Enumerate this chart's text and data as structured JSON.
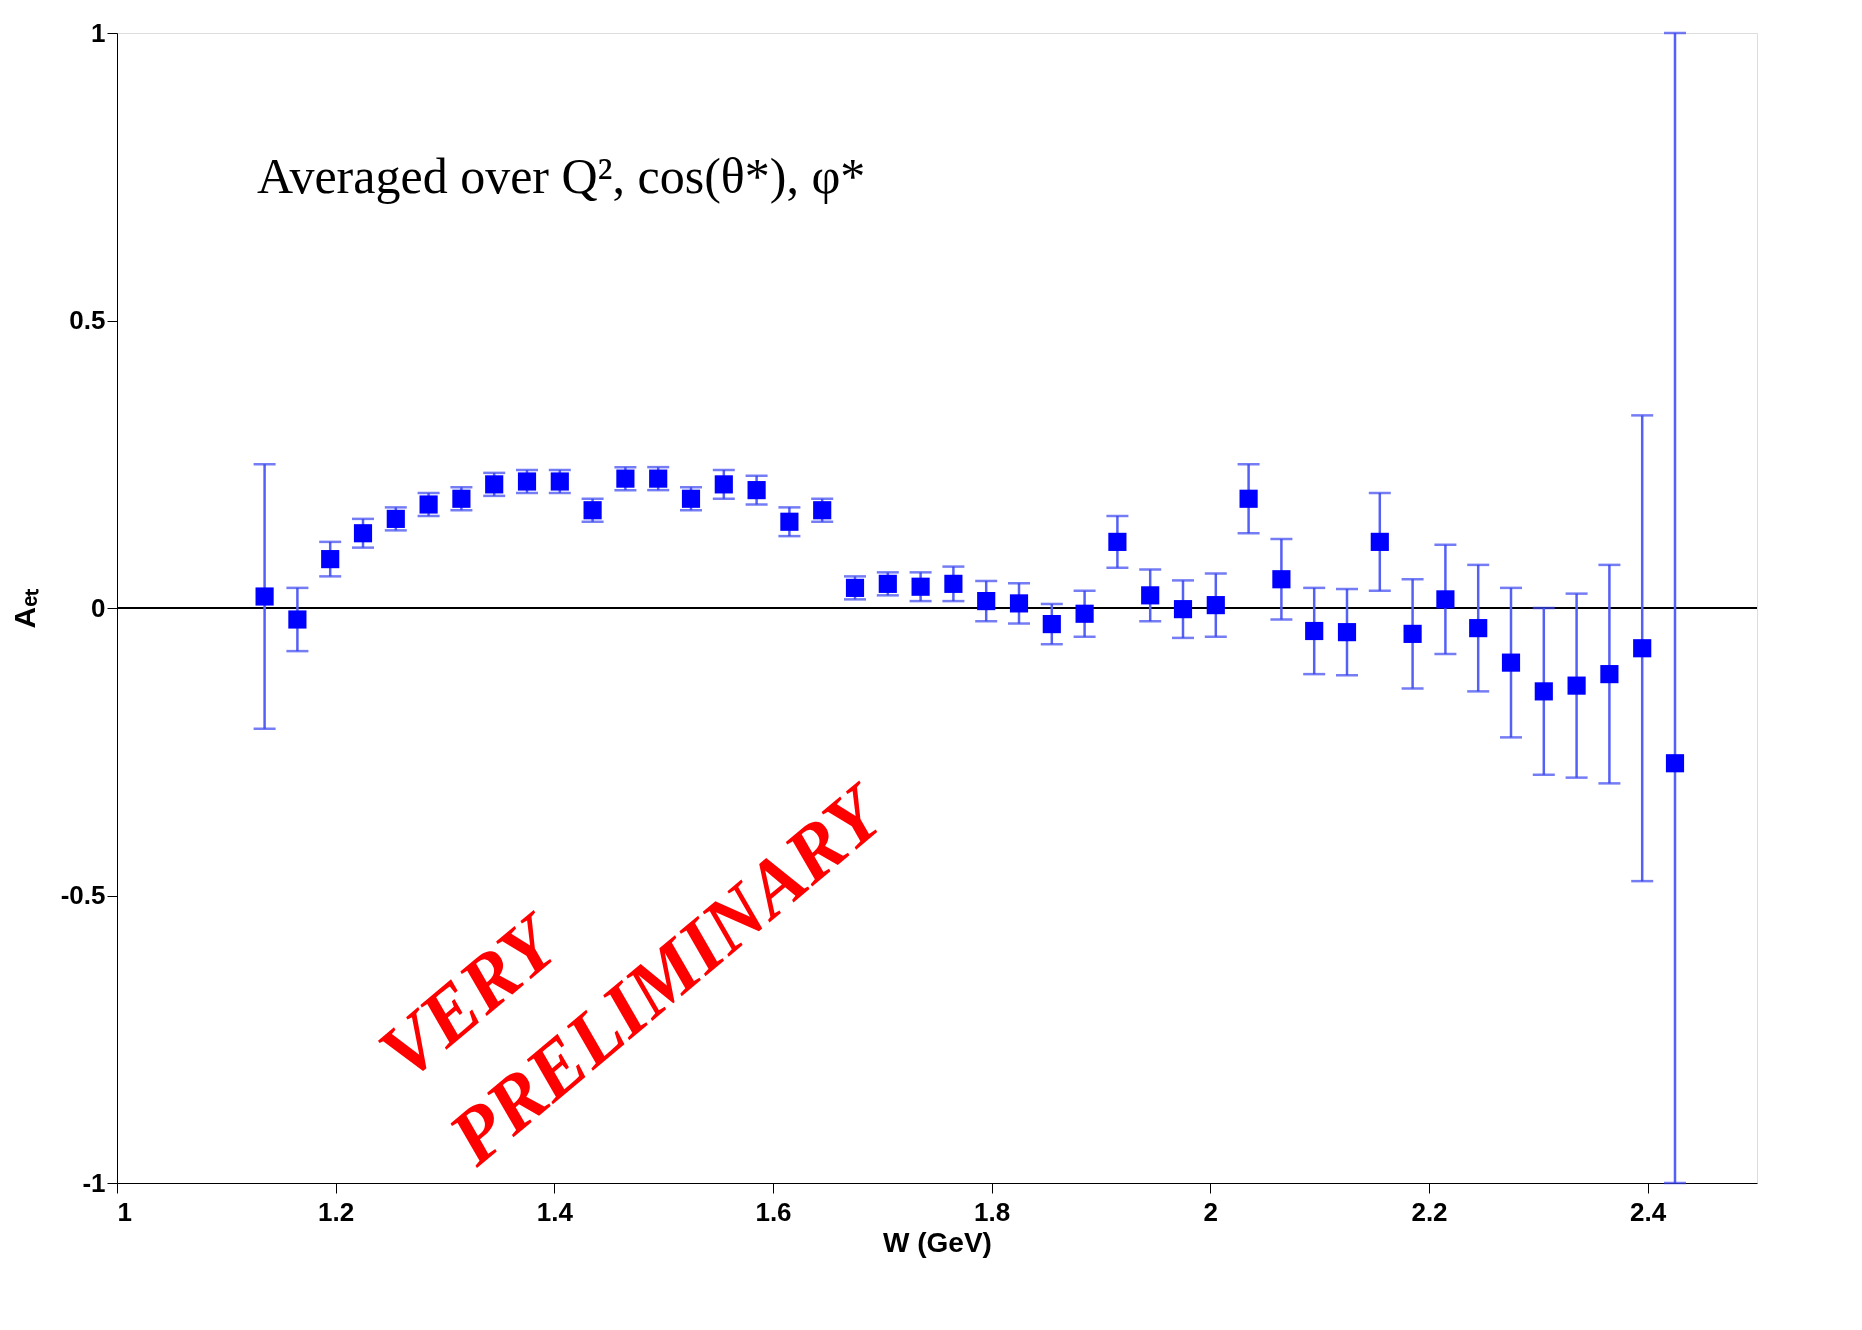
{
  "chart_data": {
    "type": "scatter",
    "xlabel": "W (GeV)",
    "ylabel": "Aₑₜ",
    "annotations": [
      "Averaged over Q², cos(θ*), φ*",
      "VERY",
      "PRELIMINARY"
    ],
    "x": [
      1.135,
      1.165,
      1.195,
      1.225,
      1.255,
      1.285,
      1.315,
      1.345,
      1.375,
      1.405,
      1.435,
      1.465,
      1.495,
      1.525,
      1.555,
      1.585,
      1.615,
      1.645,
      1.675,
      1.705,
      1.735,
      1.765,
      1.795,
      1.825,
      1.855,
      1.885,
      1.915,
      1.945,
      1.975,
      2.005,
      2.035,
      2.065,
      2.095,
      2.125,
      2.155,
      2.185,
      2.215,
      2.245,
      2.275,
      2.305,
      2.335,
      2.365,
      2.395,
      2.425
    ],
    "series": [
      {
        "color": "#0000ff",
        "values": [
          0.02,
          -0.02,
          0.085,
          0.13,
          0.155,
          0.18,
          0.19,
          0.215,
          0.22,
          0.22,
          0.17,
          0.225,
          0.225,
          0.19,
          0.215,
          0.205,
          0.15,
          0.17,
          0.035,
          0.042,
          0.037,
          0.042,
          0.012,
          0.008,
          -0.028,
          -0.01,
          0.115,
          0.022,
          -0.002,
          0.005,
          0.19,
          0.05,
          -0.04,
          -0.042,
          0.115,
          -0.045,
          0.015,
          -0.035,
          -0.095,
          -0.145,
          -0.135,
          -0.115,
          -0.07,
          -0.27
        ],
        "errors": [
          0.23,
          0.055,
          0.03,
          0.025,
          0.02,
          0.02,
          0.02,
          0.02,
          0.02,
          0.02,
          0.02,
          0.02,
          0.02,
          0.02,
          0.025,
          0.025,
          0.025,
          0.02,
          0.02,
          0.02,
          0.025,
          0.03,
          0.035,
          0.035,
          0.035,
          0.04,
          0.045,
          0.045,
          0.05,
          0.055,
          0.06,
          0.07,
          0.075,
          0.075,
          0.085,
          0.095,
          0.095,
          0.11,
          0.13,
          0.145,
          0.16,
          0.19,
          0.405,
          [
            -1,
            1
          ]
        ]
      }
    ],
    "marker": "square",
    "xlim": [
      1,
      2.5
    ],
    "xticks": [
      1,
      1.2,
      1.4,
      1.6,
      1.8,
      2,
      2.2,
      2.4
    ],
    "ylim": [
      -1,
      1
    ],
    "yticks": [
      -1,
      -0.5,
      0,
      0.5,
      1
    ],
    "ref_lines": [
      {
        "axis": "y",
        "value": 0,
        "color": "#000000"
      }
    ],
    "grid": false
  }
}
